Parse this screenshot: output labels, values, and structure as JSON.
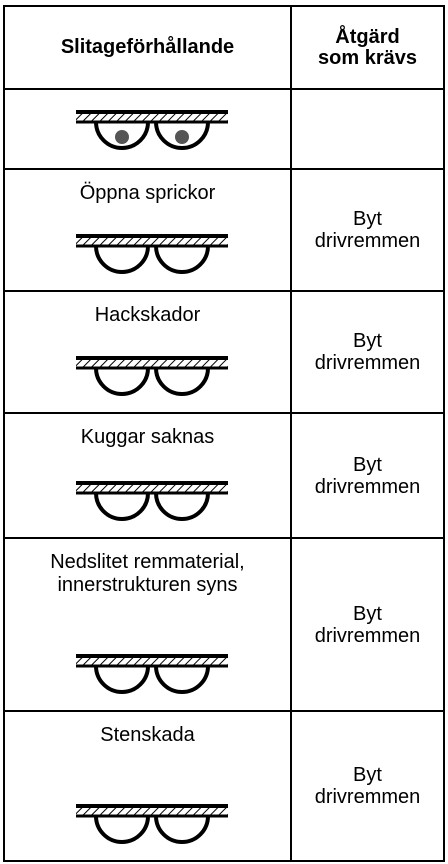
{
  "header": {
    "condition": "Slitageförhållande",
    "action": "Åtgärd som krävs"
  },
  "rows": [
    {
      "condition": "Öppna sprickor",
      "action": "Byt drivremmen"
    },
    {
      "condition": "Hackskador",
      "action": "Byt drivremmen"
    },
    {
      "condition": "Kuggar saknas",
      "action": "Byt drivremmen"
    },
    {
      "condition": "Nedslitet remmaterial, innerstrukturen syns",
      "action": "Byt drivremmen"
    },
    {
      "condition": "Stenskada",
      "action": "Byt drivremmen"
    }
  ]
}
